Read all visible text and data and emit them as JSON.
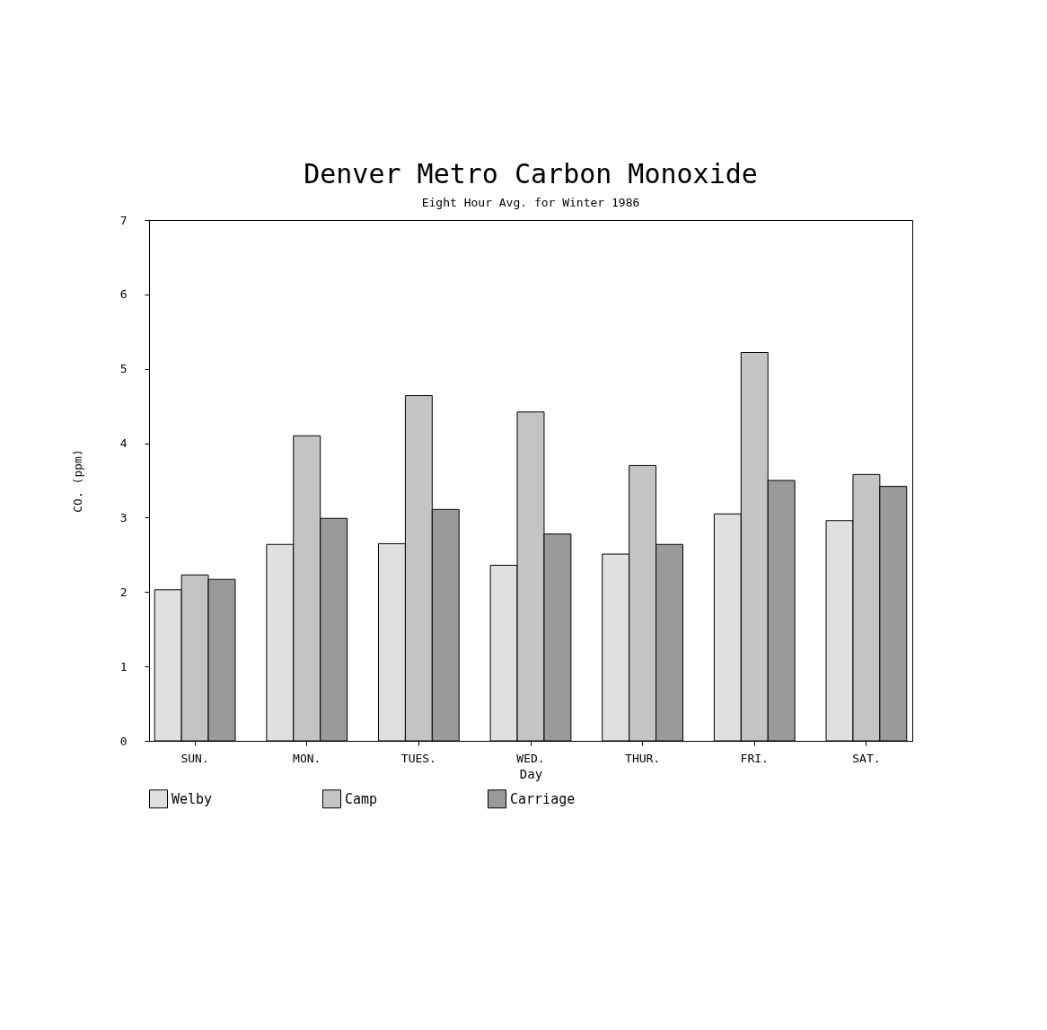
{
  "chart_data": {
    "type": "bar",
    "title": "Denver Metro Carbon Monoxide",
    "subtitle": "Eight Hour Avg. for Winter 1986",
    "xlabel": "Day",
    "ylabel": "CO. (ppm)",
    "categories": [
      "SUN.",
      "MON.",
      "TUES.",
      "WED.",
      "THUR.",
      "FRI.",
      "SAT."
    ],
    "series": [
      {
        "name": "Welby",
        "color": "#e0e0e0",
        "values": [
          2.03,
          2.64,
          2.65,
          2.36,
          2.51,
          3.05,
          2.96
        ]
      },
      {
        "name": "Camp",
        "color": "#c4c4c4",
        "values": [
          2.23,
          4.1,
          4.64,
          4.42,
          3.7,
          5.22,
          3.58
        ]
      },
      {
        "name": "Carriage",
        "color": "#9a9a9a",
        "values": [
          2.17,
          2.99,
          3.11,
          2.78,
          2.64,
          3.5,
          3.42
        ]
      }
    ],
    "ylim": [
      0,
      7
    ],
    "yticks": [
      0,
      1,
      2,
      3,
      4,
      5,
      6,
      7
    ],
    "grid": false,
    "legend": "bottom"
  }
}
